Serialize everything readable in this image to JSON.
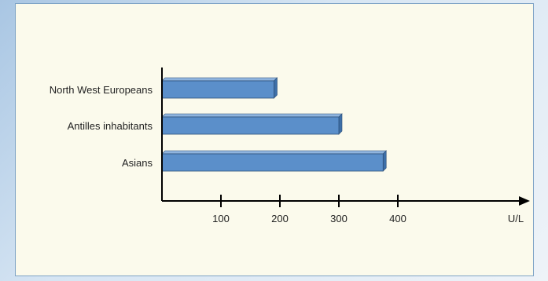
{
  "chart_data": {
    "type": "bar",
    "orientation": "horizontal",
    "title": "",
    "xlabel": "U/L",
    "ylabel": "",
    "categories": [
      "North West Europeans",
      "Antilles inhabitants",
      "Asians"
    ],
    "values": [
      190,
      300,
      375
    ],
    "xlim": [
      0,
      500
    ],
    "xticks": [
      100,
      200,
      300,
      400
    ],
    "grid": false,
    "legend": "none",
    "colors": {
      "bar": "#5b8fca",
      "bar_side": "#3d6fa8",
      "bar_top": "#8fb4de"
    }
  }
}
